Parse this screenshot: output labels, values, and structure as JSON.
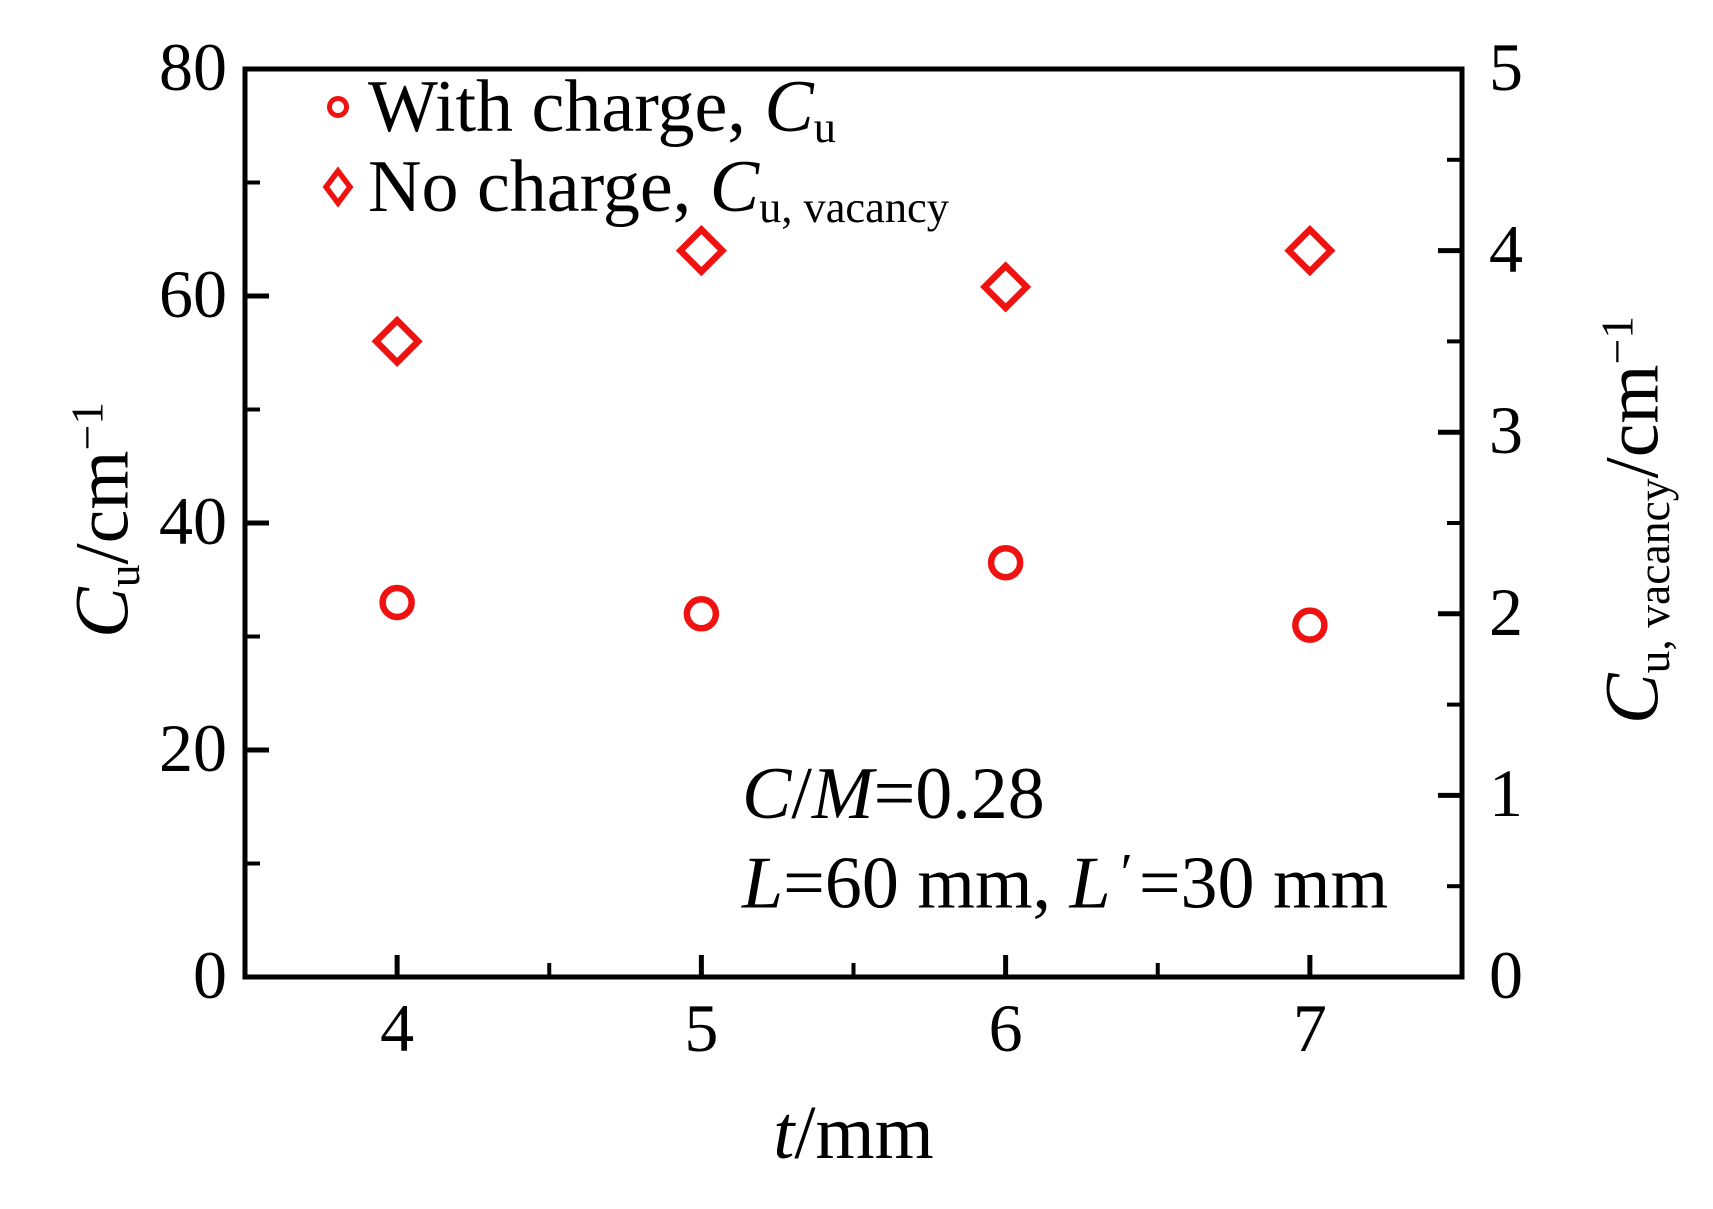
{
  "figure": {
    "background": "#ffffff",
    "axis_color": "#000000",
    "marker_color": "#ee1311"
  },
  "legend": {
    "items": [
      {
        "marker": "circle-icon",
        "label_text": "With charge, ",
        "symbol": "C",
        "subscript": "u"
      },
      {
        "marker": "diamond-icon",
        "label_text": "No charge, ",
        "symbol": "C",
        "subscript": "u, vacancy"
      }
    ]
  },
  "annotation": {
    "line1": {
      "symbol1": "C",
      "slash": "/",
      "symbol2": "M",
      "rest": "=0.28"
    },
    "line2": {
      "symbol1": "L",
      "rest1": "=60 mm, ",
      "symbol2": "L",
      "prime": "′",
      "rest2": "=30 mm"
    }
  },
  "axes": {
    "x": {
      "symbol": "t",
      "unit": "/mm",
      "ticks": [
        4,
        5,
        6,
        7
      ],
      "minor_ticks": [
        4.5,
        5.5,
        6.5
      ],
      "range": [
        3.5,
        7.5
      ]
    },
    "y_left": {
      "symbol": "C",
      "subscript": "u",
      "unit": "/cm",
      "superscript": "−1",
      "ticks": [
        0,
        20,
        40,
        60,
        80
      ],
      "minor_ticks": [
        10,
        30,
        50,
        70
      ],
      "range": [
        0,
        80
      ]
    },
    "y_right": {
      "symbol": "C",
      "subscript": "u, vacancy",
      "unit": "/cm",
      "superscript": "−1",
      "ticks": [
        0,
        1,
        2,
        3,
        4,
        5
      ],
      "minor_ticks": [
        0.5,
        1.5,
        2.5,
        3.5,
        4.5
      ],
      "range": [
        0,
        5
      ]
    }
  },
  "chart_data": {
    "type": "scatter",
    "x": [
      4,
      5,
      6,
      7
    ],
    "series": [
      {
        "name": "With charge, Cu",
        "axis": "left",
        "marker": "circle",
        "values": [
          33,
          32,
          36.5,
          31
        ]
      },
      {
        "name": "No charge, Cu,vacancy",
        "axis": "right",
        "marker": "diamond",
        "values": [
          3.5,
          4.0,
          3.8,
          4.0
        ]
      }
    ],
    "xlabel": "t/mm",
    "ylabel_left": "Cu/cm−1",
    "ylabel_right": "Cu,vacancy/cm−1",
    "xlim": [
      3.5,
      7.5
    ],
    "ylim_left": [
      0,
      80
    ],
    "ylim_right": [
      0,
      5
    ],
    "grid": false,
    "legend_position": "top-left-inside"
  }
}
